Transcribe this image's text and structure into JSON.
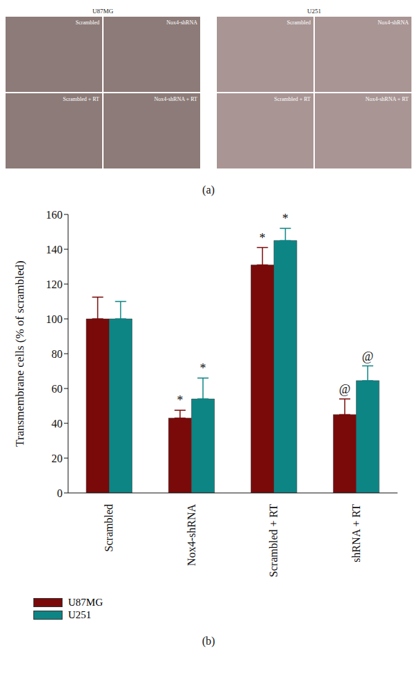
{
  "figure": {
    "panel_labels": [
      "(a)",
      "(b)"
    ],
    "micrographs": [
      {
        "cell_line": "U87MG",
        "panels": [
          "Scrambled",
          "Nox4-shRNA",
          "Scrambled + RT",
          "Nox4-shRNA + RT"
        ]
      },
      {
        "cell_line": "U251",
        "panels": [
          "Scrambled",
          "Nox4-shRNA",
          "Scrambled + RT",
          "Nox4-shRNA + RT"
        ]
      }
    ]
  },
  "chart_data": {
    "type": "bar",
    "categories": [
      "Scrambled",
      "Nox4-shRNA",
      "Scrambled + RT",
      "shRNA + RT"
    ],
    "y_label": "Transmembrane cells (% of scrambled)",
    "ylim": [
      0,
      160
    ],
    "yticks": [
      0,
      20,
      40,
      60,
      80,
      100,
      120,
      140,
      160
    ],
    "grid": false,
    "legend": "bottom left",
    "series": [
      {
        "name": "U87MG",
        "color": "#7a0a0a",
        "values": [
          100,
          43,
          131,
          45
        ],
        "errors": [
          12.5,
          4.5,
          10,
          9
        ],
        "annotations": [
          null,
          "*",
          "*",
          "@"
        ]
      },
      {
        "name": "U251",
        "color": "#0e8585",
        "values": [
          100,
          54,
          145,
          64.5
        ],
        "errors": [
          10,
          12,
          7,
          8.5
        ],
        "annotations": [
          null,
          "*",
          "*",
          "@"
        ]
      }
    ]
  }
}
